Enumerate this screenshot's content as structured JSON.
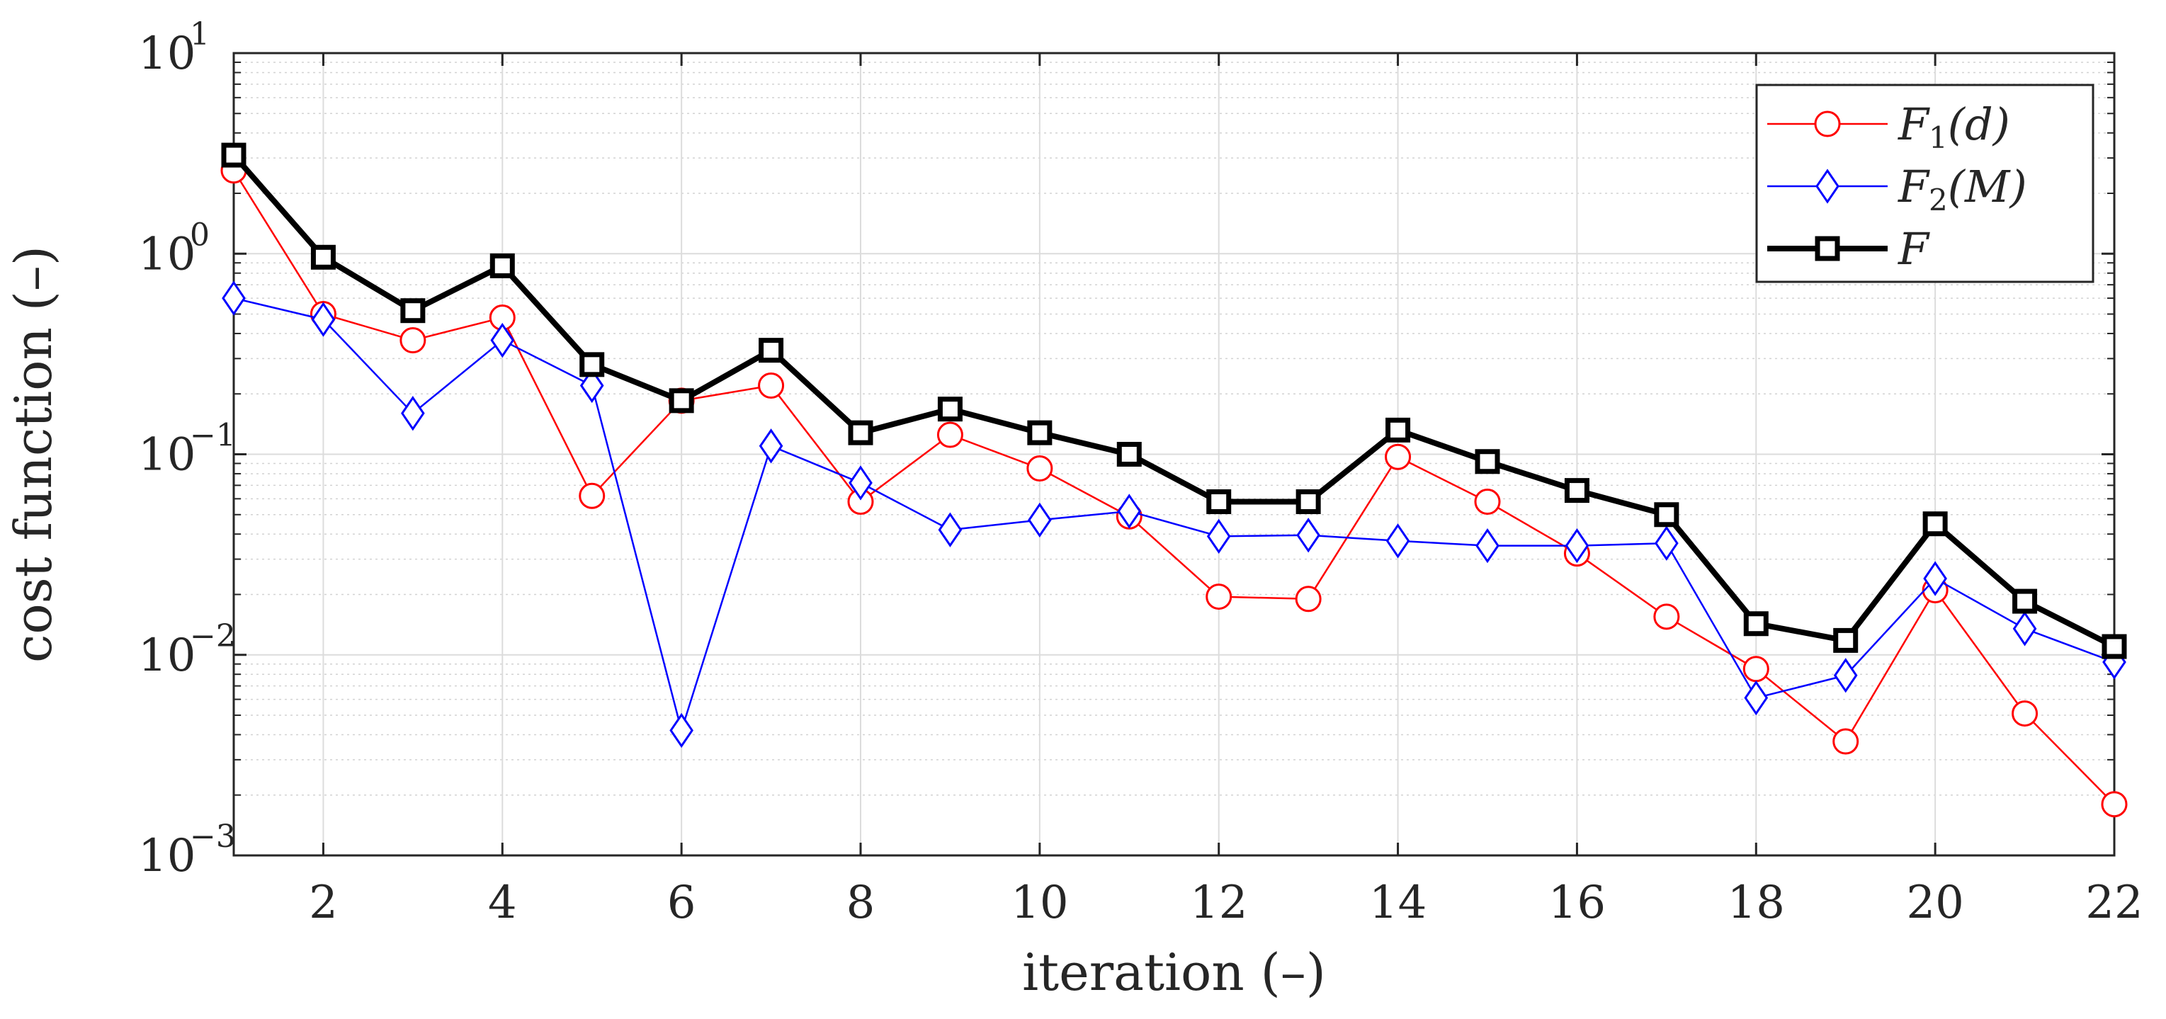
{
  "chart_data": {
    "type": "line",
    "yscale": "log",
    "xlabel": "iteration (–)",
    "ylabel": "cost function (–)",
    "xlim": [
      1,
      22
    ],
    "ylim": [
      0.001,
      10
    ],
    "x_ticks": [
      2,
      4,
      6,
      8,
      10,
      12,
      14,
      16,
      18,
      20,
      22
    ],
    "y_ticks": [
      {
        "value": 10,
        "base": "10",
        "exp": "1"
      },
      {
        "value": 1,
        "base": "10",
        "exp": "0"
      },
      {
        "value": 0.1,
        "base": "10",
        "exp": "−1"
      },
      {
        "value": 0.01,
        "base": "10",
        "exp": "−2"
      },
      {
        "value": 0.001,
        "base": "10",
        "exp": "−3"
      }
    ],
    "grid": true,
    "legend_position": "top-right",
    "x": [
      1,
      2,
      3,
      4,
      5,
      6,
      7,
      8,
      9,
      10,
      11,
      12,
      13,
      14,
      15,
      16,
      17,
      18,
      19,
      20,
      21,
      22
    ],
    "series": [
      {
        "name": "F1(d)",
        "label_main": "F",
        "label_sub": "1",
        "label_arg": "(d)",
        "color": "#ff0000",
        "marker": "circle",
        "values": [
          2.6,
          0.5,
          0.37,
          0.48,
          0.062,
          0.185,
          0.22,
          0.058,
          0.125,
          0.085,
          0.049,
          0.0195,
          0.019,
          0.097,
          0.058,
          0.032,
          0.0155,
          0.0085,
          0.0037,
          0.021,
          0.0051,
          0.0018
        ]
      },
      {
        "name": "F2(M)",
        "label_main": "F",
        "label_sub": "2",
        "label_arg": "(M)",
        "color": "#0000ff",
        "marker": "diamond",
        "values": [
          0.6,
          0.47,
          0.16,
          0.37,
          0.22,
          0.0042,
          0.11,
          0.072,
          0.042,
          0.047,
          0.052,
          0.039,
          0.0395,
          0.037,
          0.035,
          0.035,
          0.036,
          0.0061,
          0.0079,
          0.024,
          0.0135,
          0.0092
        ]
      },
      {
        "name": "F",
        "label_main": "F",
        "label_sub": "",
        "label_arg": "",
        "color": "#000000",
        "marker": "square",
        "values": [
          3.1,
          0.96,
          0.52,
          0.87,
          0.28,
          0.185,
          0.33,
          0.128,
          0.168,
          0.128,
          0.1,
          0.058,
          0.058,
          0.132,
          0.092,
          0.066,
          0.05,
          0.0143,
          0.0118,
          0.045,
          0.0185,
          0.011
        ]
      }
    ]
  }
}
